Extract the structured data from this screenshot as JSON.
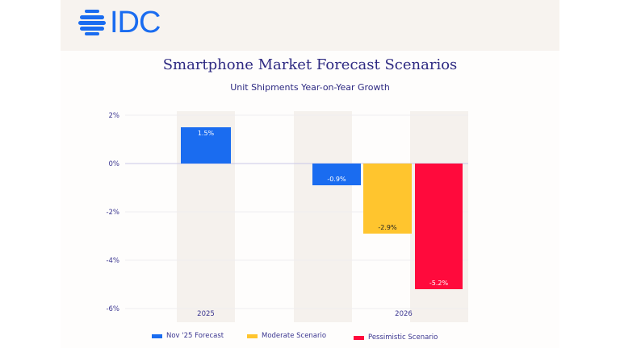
{
  "logo": {
    "text": "IDC",
    "color": "#1a6cf0"
  },
  "chart_data": {
    "type": "bar",
    "title": "Smartphone Market Forecast Scenarios",
    "subtitle": "Unit Shipments Year-on-Year Growth",
    "categories": [
      "2025",
      "2026"
    ],
    "series": [
      {
        "name": "Nov '25 Forecast",
        "color": "#1a6cf0",
        "values": [
          1.5,
          -0.9
        ],
        "labels": [
          "1.5%",
          "-0.9%"
        ]
      },
      {
        "name": "Moderate Scenario",
        "color": "#ffc52e",
        "values": [
          null,
          -2.9
        ],
        "labels": [
          null,
          "-2.9%"
        ]
      },
      {
        "name": "Pessimistic Scenario",
        "color": "#ff0a3c",
        "values": [
          null,
          -5.2
        ],
        "labels": [
          null,
          "-5.2%"
        ]
      }
    ],
    "yticks": [
      "2%",
      "0%",
      "-2%",
      "-4%",
      "-6%"
    ],
    "ytick_values": [
      2,
      0,
      -2,
      -4,
      -6
    ],
    "ylim": [
      -6,
      2
    ],
    "grid": true,
    "legend_position": "bottom",
    "xlabel": "",
    "ylabel": ""
  }
}
